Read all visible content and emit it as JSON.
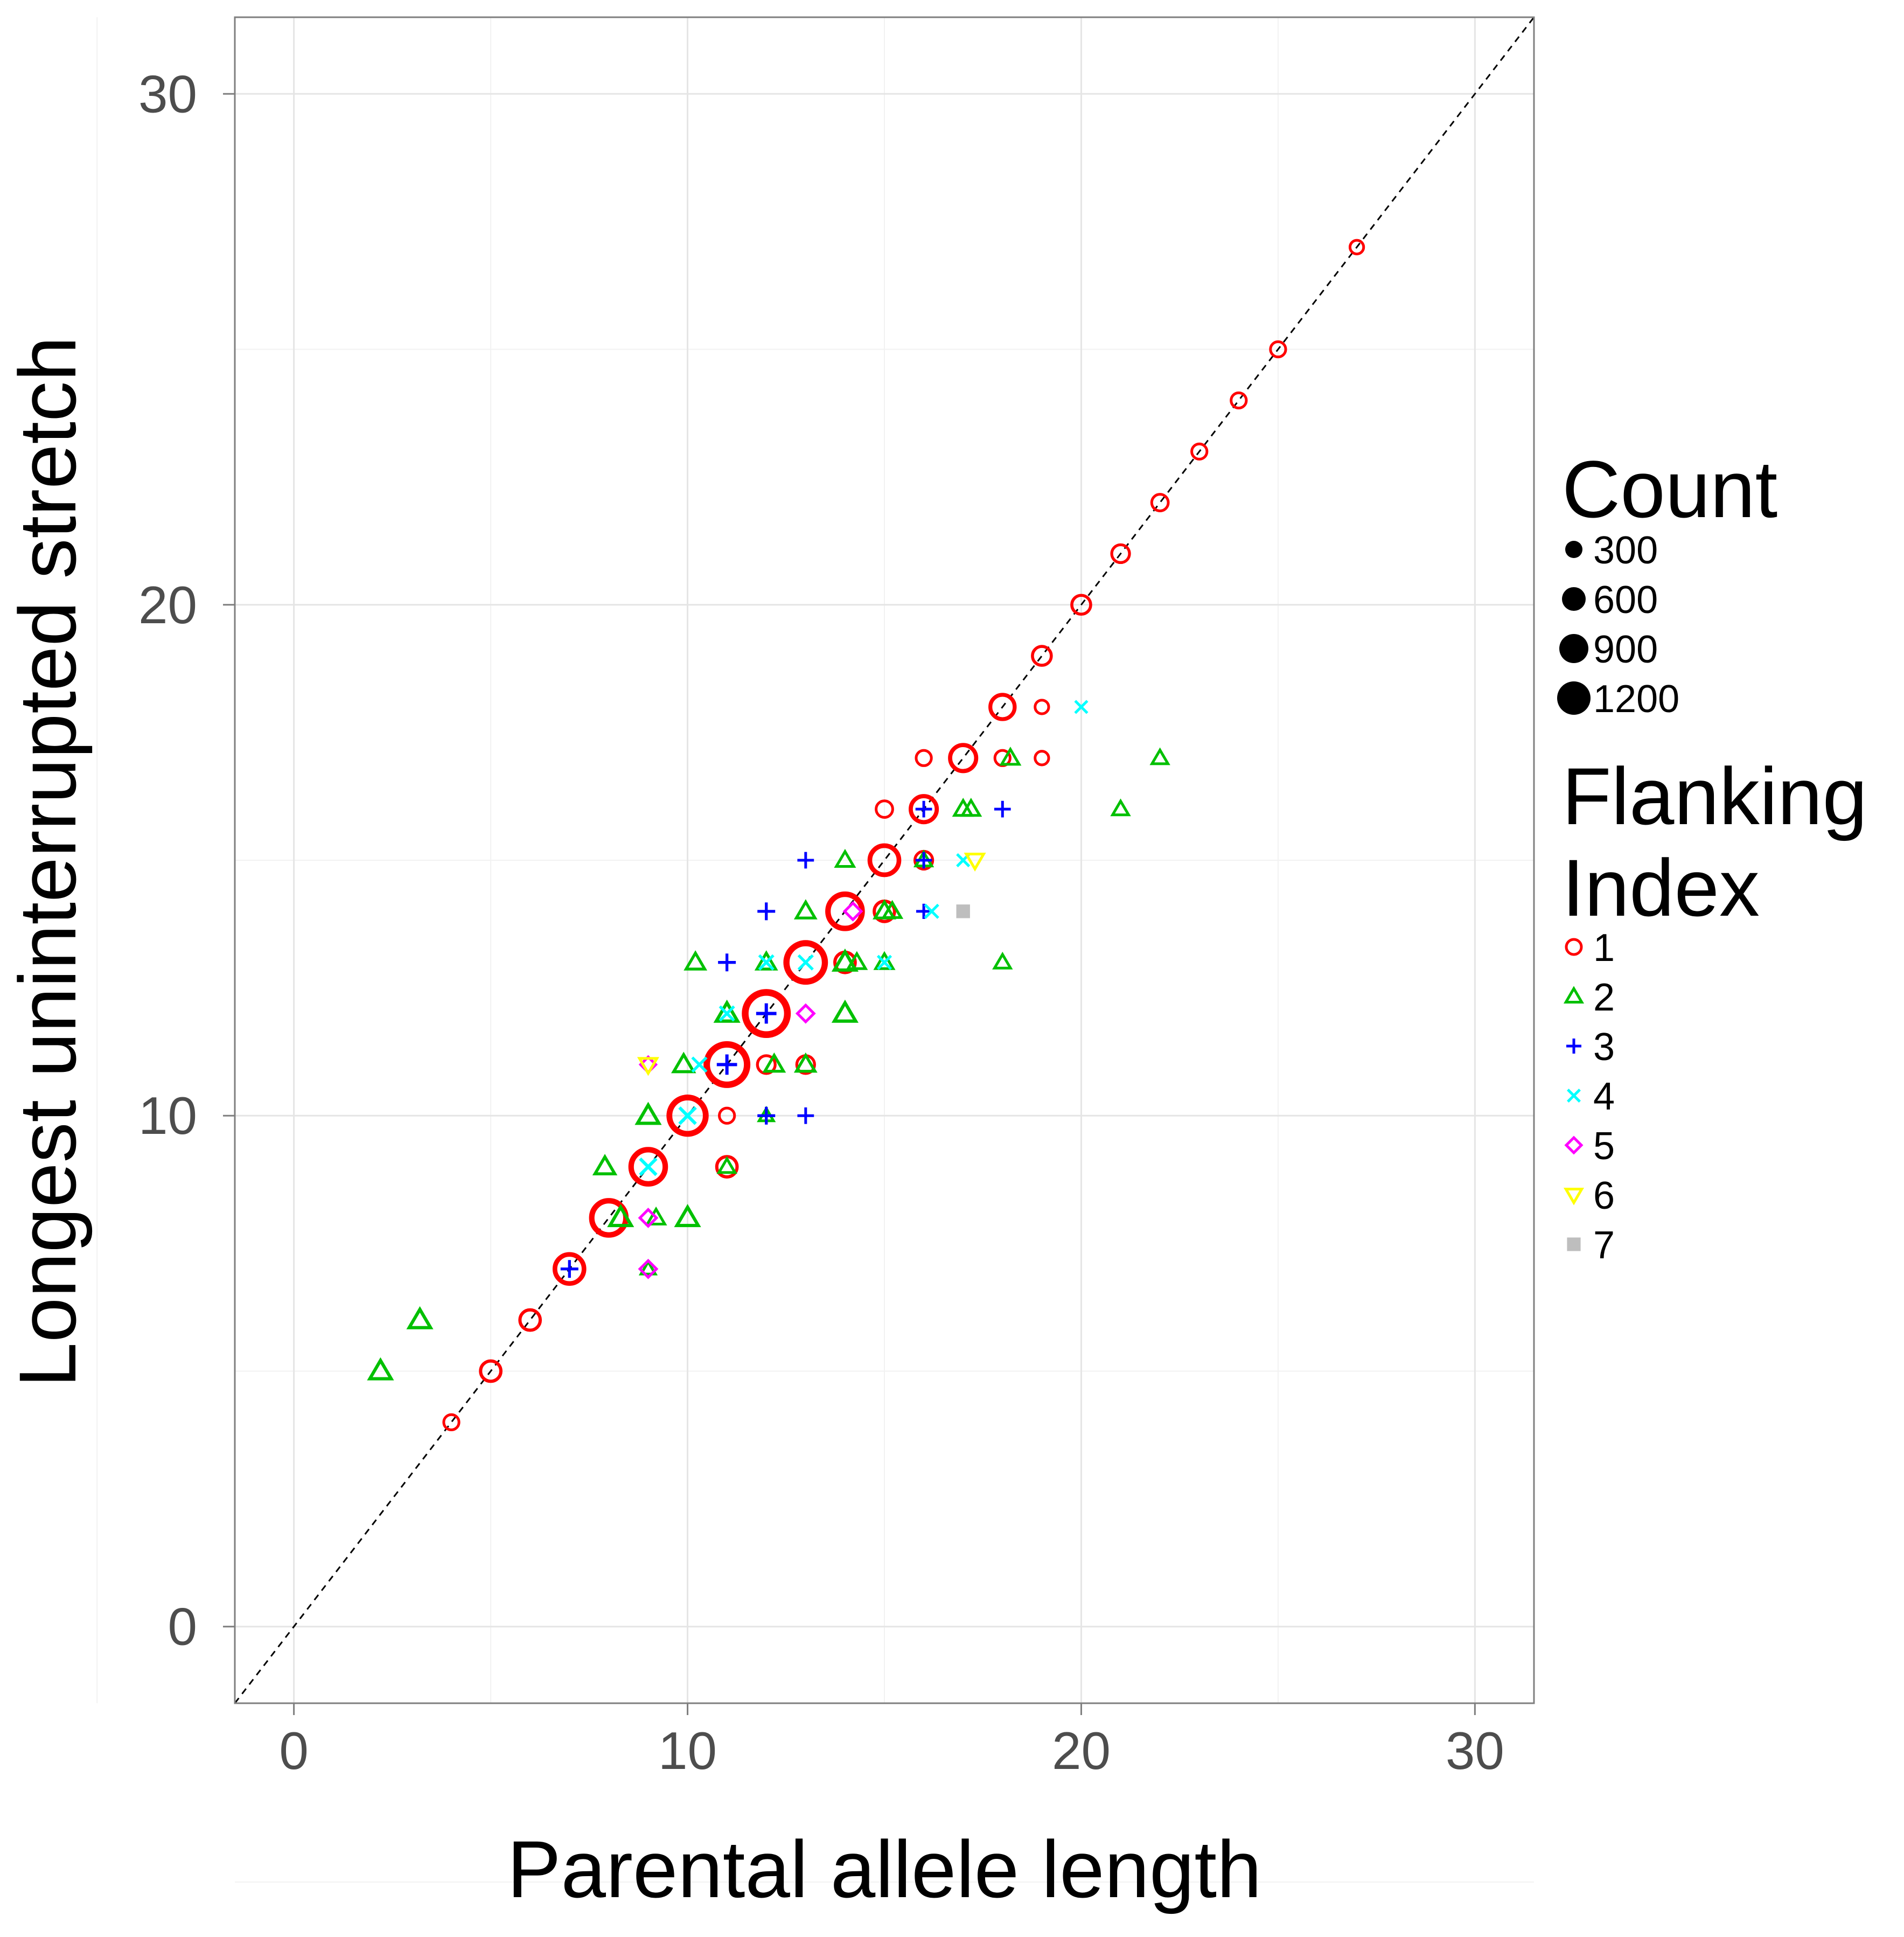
{
  "chart_data": {
    "type": "scatter",
    "xlabel": "Parental allele length",
    "ylabel": "Longest uninterrupted stretch",
    "xlim": [
      -1.5,
      31.5
    ],
    "ylim": [
      -1.5,
      31.5
    ],
    "x_ticks": [
      "0",
      "10",
      "20",
      "30"
    ],
    "y_ticks": [
      "0",
      "10",
      "20",
      "30"
    ],
    "x_tick_values": [
      0,
      10,
      20,
      30
    ],
    "y_tick_values": [
      0,
      10,
      20,
      30
    ],
    "reference_line": "y = x (dashed)",
    "grid": true,
    "legends": {
      "size": {
        "title": "Count",
        "labels": [
          "300",
          "600",
          "900",
          "1200"
        ],
        "values": [
          300,
          600,
          900,
          1200
        ]
      },
      "color": {
        "title_line1": "Flanking",
        "title_line2": "Index",
        "labels": [
          "1",
          "2",
          "3",
          "4",
          "5",
          "6",
          "7"
        ],
        "colors": [
          "#ff0000",
          "#00c000",
          "#0000ff",
          "#00ffff",
          "#ff00ff",
          "#ffff00",
          "#bebebe"
        ],
        "shapes": [
          "circle",
          "triangle",
          "plus",
          "cross",
          "diamond",
          "triangle-down",
          "square"
        ]
      }
    },
    "series": [
      {
        "name": "1",
        "points": [
          [
            4,
            4,
            60
          ],
          [
            5,
            5,
            150
          ],
          [
            6,
            6,
            150
          ],
          [
            7,
            7,
            400
          ],
          [
            8,
            8,
            600
          ],
          [
            9,
            9,
            600
          ],
          [
            10,
            10,
            700
          ],
          [
            11,
            11,
            900
          ],
          [
            12,
            12,
            1000
          ],
          [
            13,
            13,
            800
          ],
          [
            14,
            14,
            600
          ],
          [
            15,
            15,
            400
          ],
          [
            16,
            16,
            300
          ],
          [
            17,
            17,
            300
          ],
          [
            18,
            18,
            250
          ],
          [
            19,
            19,
            120
          ],
          [
            20,
            20,
            120
          ],
          [
            21,
            21,
            100
          ],
          [
            22,
            22,
            80
          ],
          [
            23,
            23,
            60
          ],
          [
            24,
            24,
            60
          ],
          [
            25,
            25,
            60
          ],
          [
            27,
            27,
            40
          ],
          [
            11,
            10,
            60
          ],
          [
            12,
            11,
            100
          ],
          [
            14,
            13,
            150
          ],
          [
            15,
            14,
            150
          ],
          [
            16,
            15,
            100
          ],
          [
            15,
            16,
            80
          ],
          [
            16,
            17,
            60
          ],
          [
            18,
            17,
            60
          ],
          [
            19,
            17,
            40
          ],
          [
            19,
            18,
            40
          ],
          [
            11,
            9,
            150
          ],
          [
            13,
            11,
            100
          ]
        ]
      },
      {
        "name": "2",
        "points": [
          [
            2.2,
            5,
            150
          ],
          [
            3.2,
            6,
            150
          ],
          [
            7.9,
            9,
            120
          ],
          [
            9,
            10,
            150
          ],
          [
            8.3,
            8,
            150
          ],
          [
            9.2,
            8,
            80
          ],
          [
            10,
            8,
            150
          ],
          [
            9.9,
            11,
            120
          ],
          [
            10.2,
            13,
            100
          ],
          [
            11,
            12,
            150
          ],
          [
            12,
            13,
            100
          ],
          [
            12.2,
            11,
            100
          ],
          [
            13,
            14,
            100
          ],
          [
            13,
            11,
            100
          ],
          [
            14,
            15,
            80
          ],
          [
            14,
            12,
            150
          ],
          [
            14,
            13,
            150
          ],
          [
            14.3,
            13,
            80
          ],
          [
            15,
            14,
            100
          ],
          [
            15.2,
            14,
            80
          ],
          [
            15,
            13,
            80
          ],
          [
            16,
            15,
            60
          ],
          [
            17,
            16,
            80
          ],
          [
            17.2,
            16,
            80
          ],
          [
            18.2,
            17,
            80
          ],
          [
            18,
            13,
            60
          ],
          [
            21,
            16,
            60
          ],
          [
            22,
            17,
            60
          ],
          [
            11,
            9,
            60
          ],
          [
            9,
            7,
            40
          ],
          [
            12,
            10,
            40
          ]
        ]
      },
      {
        "name": "3",
        "points": [
          [
            7,
            7,
            100
          ],
          [
            11,
            13,
            100
          ],
          [
            11,
            11,
            150
          ],
          [
            12,
            12,
            150
          ],
          [
            12,
            14,
            100
          ],
          [
            12,
            10,
            100
          ],
          [
            13,
            15,
            80
          ],
          [
            13,
            10,
            80
          ],
          [
            16,
            16,
            80
          ],
          [
            16,
            15,
            80
          ],
          [
            16,
            14,
            60
          ],
          [
            18,
            16,
            80
          ]
        ]
      },
      {
        "name": "4",
        "points": [
          [
            9,
            9,
            150
          ],
          [
            10,
            10,
            150
          ],
          [
            10.3,
            11,
            100
          ],
          [
            11,
            12,
            100
          ],
          [
            12,
            13,
            100
          ],
          [
            13,
            13,
            100
          ],
          [
            15,
            13,
            80
          ],
          [
            16.2,
            14,
            80
          ],
          [
            17,
            15,
            60
          ],
          [
            20,
            18,
            60
          ]
        ]
      },
      {
        "name": "5",
        "points": [
          [
            9,
            8,
            80
          ],
          [
            9,
            7,
            80
          ],
          [
            9,
            11,
            60
          ],
          [
            13,
            12,
            80
          ],
          [
            14.2,
            14,
            80
          ]
        ]
      },
      {
        "name": "6",
        "points": [
          [
            9,
            11,
            80
          ],
          [
            17.3,
            15,
            80
          ]
        ]
      },
      {
        "name": "7",
        "points": [
          [
            17,
            14,
            60
          ]
        ]
      }
    ]
  }
}
